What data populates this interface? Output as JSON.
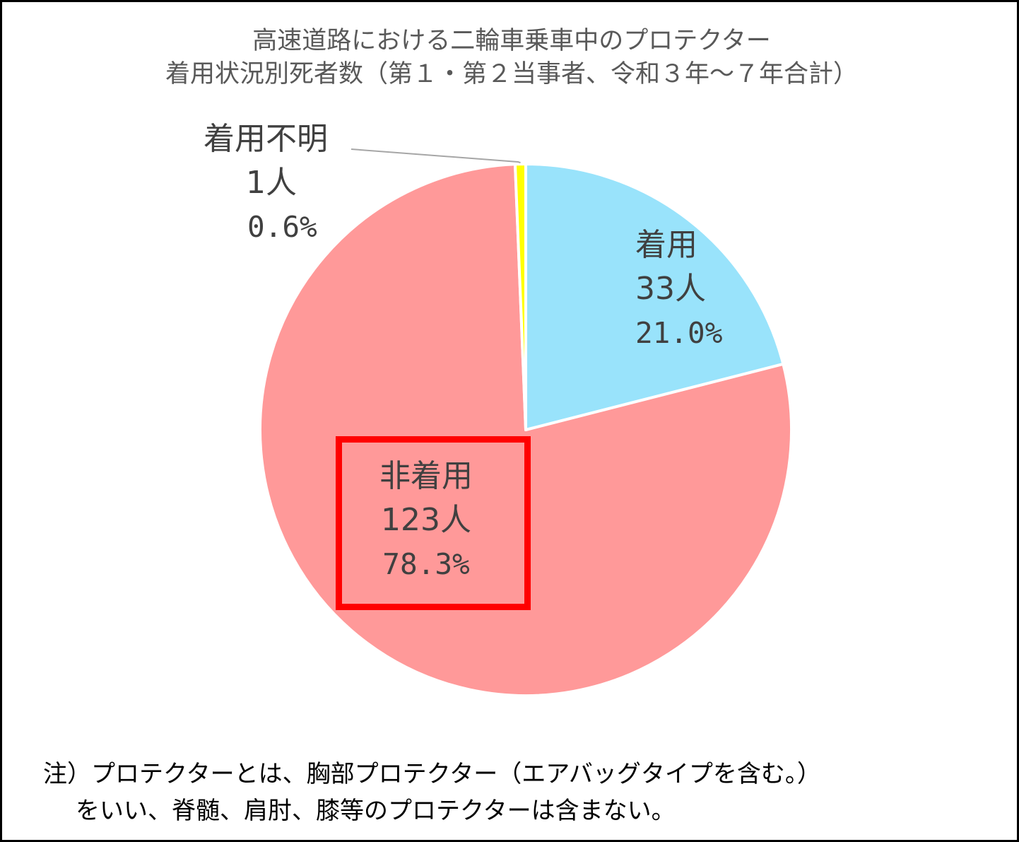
{
  "chart_data": {
    "type": "pie",
    "title": "高速道路における二輪車乗車中のプロテクター",
    "subtitle": "着用状況別死者数（第１・第２当事者、令和３年～７年合計）",
    "slices": [
      {
        "name": "着用",
        "count": "33人",
        "percent": "21.0%",
        "value": 33,
        "color": "#99e3fb"
      },
      {
        "name": "非着用",
        "count": "123人",
        "percent": "78.3%",
        "value": 123,
        "color": "#ff9999"
      },
      {
        "name": "着用不明",
        "count": "1人",
        "percent": "0.6%",
        "value": 1,
        "color": "#ffff00"
      }
    ],
    "highlighted_slice": "非着用",
    "highlight_color": "#ff0000",
    "legend": "none"
  },
  "note": {
    "line1": "注）プロテクターとは、胸部プロテクター（エアバッグタイプを含む。）",
    "line2": "をいい、脊髄、肩肘、膝等のプロテクターは含まない。"
  }
}
